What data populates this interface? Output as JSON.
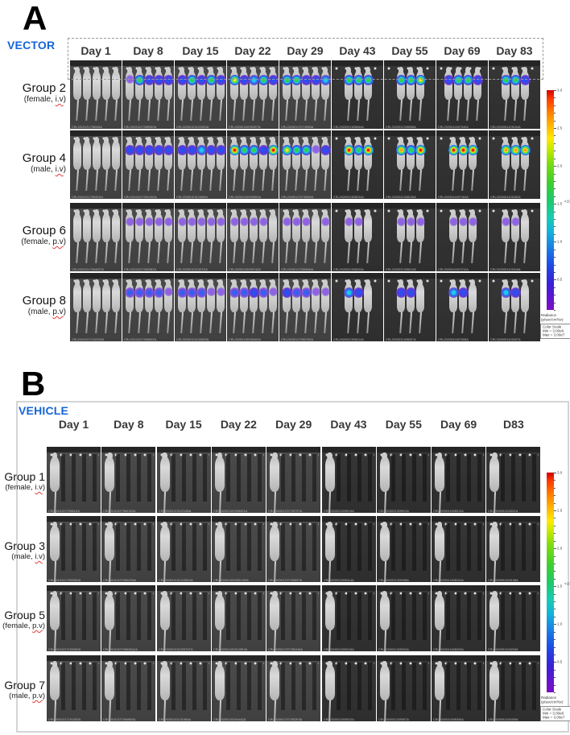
{
  "figure": {
    "panels": [
      {
        "panel_label": "A",
        "treatment": "VECTOR",
        "days": [
          "Day 1",
          "Day 8",
          "Day 15",
          "Day 22",
          "Day 29",
          "Day 43",
          "Day 55",
          "Day 69",
          "Day 83"
        ],
        "rows": [
          {
            "group": "Group 2",
            "sub_prefix": "(female, ",
            "route": "i.v",
            "sub_suffix": ")",
            "ids": [
              "CRL2019121708326A",
              "CRL2019122708505SA",
              "CRL2020010312240SA",
              "CRL2020011009030TA",
              "CRL2020011707490NA",
              "CRL2020021508064A",
              "CRL2020031308058A",
              "CRL2020041607040A",
              "CRL2020051105154A"
            ],
            "glow": [
              [
                "-",
                "-",
                "-",
                "-",
                "-"
              ],
              [
                "p",
                "g",
                "b",
                "b",
                "b"
              ],
              [
                "b",
                "g",
                "b",
                "g",
                "b"
              ],
              [
                "y",
                "b",
                "c",
                "g",
                "b"
              ],
              [
                "g",
                "g",
                "b",
                "b",
                "c"
              ],
              [
                "g",
                "g",
                "g"
              ],
              [
                "g",
                "g",
                "y"
              ],
              [
                "b",
                "g",
                "g",
                "b"
              ],
              [
                "g",
                "g",
                "b"
              ]
            ]
          },
          {
            "group": "Group 4",
            "sub_prefix": "(male, ",
            "route": "i.v",
            "sub_suffix": ")",
            "ids": [
              "CRL2019121709401IA",
              "CRL2019122709124GA",
              "CRL2020010312450IA",
              "CRL2020011009050SA",
              "CRL2020011707650NA",
              "CRL2020021508234A",
              "CRL2020031308128A",
              "CRL2020041607164A",
              "CRL2020051105262A"
            ],
            "glow": [
              [
                "-",
                "-",
                "-",
                "-",
                "-"
              ],
              [
                "b",
                "b",
                "b",
                "b",
                "b"
              ],
              [
                "b",
                "b",
                "c",
                "b",
                "b"
              ],
              [
                "r",
                "g",
                "g",
                "b",
                "r"
              ],
              [
                "y",
                "g",
                "g",
                "p",
                "b"
              ],
              [
                "r",
                "g",
                "r"
              ],
              [
                "o",
                "g",
                "r"
              ],
              [
                "r",
                "r",
                "r"
              ],
              [
                "o",
                "o",
                "o"
              ]
            ]
          },
          {
            "group": "Group 6",
            "sub_prefix": "(female, ",
            "route": "p.v",
            "sub_suffix": ")",
            "ids": [
              "CRL2019121709403TA",
              "CRL2019122709038ZA",
              "CRL2020010313072IA",
              "CRL2020011009074ZA",
              "CRL2020011708054NA",
              "CRL2020021508323A",
              "CRL2020031308213A",
              "CRL2020041607212A",
              "CRL2020051105318A"
            ],
            "glow": [
              [
                "-",
                "-",
                "-",
                "-",
                "-"
              ],
              [
                "p",
                "p",
                "p",
                "p",
                "p"
              ],
              [
                "p",
                "p",
                "p",
                "p",
                "p"
              ],
              [
                "p",
                "p",
                "p",
                "p",
                "-"
              ],
              [
                "p",
                "p",
                "p",
                "-",
                "p"
              ],
              [
                "p",
                "p",
                "-"
              ],
              [
                "p",
                "p",
                "p"
              ],
              [
                "p",
                "p",
                "p"
              ],
              [
                "p",
                "p",
                "-"
              ]
            ]
          },
          {
            "group": "Group 8",
            "sub_prefix": "(male, ",
            "route": "p.v",
            "sub_suffix": ")",
            "ids": [
              "CRL2019121710223SA",
              "CRL2019122709563ZA",
              "CRL2020010313309SA",
              "CRL2020011009540ZA",
              "CRL2020011708076SA",
              "CRL2020021508414A",
              "CRL2020031308307A",
              "CRL2020041607308A",
              "CRL2020051105407A"
            ],
            "glow": [
              [
                "-",
                "-",
                "-",
                "-",
                "-"
              ],
              [
                "P",
                "P",
                "P",
                "P",
                "p"
              ],
              [
                "P",
                "P",
                "P",
                "p",
                "p"
              ],
              [
                "P",
                "P",
                "b",
                "P",
                "p"
              ],
              [
                "b",
                "P",
                "P",
                "p",
                "p"
              ],
              [
                "c",
                "b",
                "-"
              ],
              [
                "b",
                "b",
                "-"
              ],
              [
                "c",
                "b",
                "-"
              ],
              [
                "c",
                "b",
                "-"
              ]
            ]
          }
        ]
      },
      {
        "panel_label": "B",
        "treatment": "VEHICLE",
        "days": [
          "Day 1",
          "Day 8",
          "Day 15",
          "Day 22",
          "Day 29",
          "Day 43",
          "Day 55",
          "Day 69",
          "D83"
        ],
        "rows": [
          {
            "group": "Group 1",
            "sub_prefix": "(female, ",
            "route": "i.v",
            "sub_suffix": ")",
            "ids": [
              "CRL2019121709541IA",
              "CRL2019122708413SA",
              "CRL2020010312214BA",
              "CRL2020011009083S1A",
              "CRL2020011707307S7A",
              "CRL2020021509013A",
              "CRL2020031309021A",
              "CRL2020041608012A",
              "CRL2020051106011A"
            ]
          },
          {
            "group": "Group 3",
            "sub_prefix": "(male, ",
            "route": "i.v",
            "sub_suffix": ")",
            "ids": [
              "CRL2019121709035SA",
              "CRL2019122709047MA",
              "CRL2020010312135D4A",
              "CRL2020011009091J09A",
              "CRL2020011707506S7A",
              "CRL2020021509114A",
              "CRL2020031309108A",
              "CRL2020041608104A",
              "CRL2020051106108A"
            ]
          },
          {
            "group": "Group 5",
            "sub_prefix": "(female, ",
            "route": "p.v",
            "sub_suffix": ")",
            "ids": [
              "CRL2019121710026SA",
              "CRL2019122709625Q4A",
              "CRL2020010313257S7A",
              "CRL2020011009129E2A",
              "CRL2020011707081I46A",
              "CRL2020021509216A",
              "CRL2020031309204A",
              "CRL2020041608209A",
              "CRL2020051106203A"
            ]
          },
          {
            "group": "Group 7",
            "sub_prefix": "(male, ",
            "route": "p.v",
            "sub_suffix": ")",
            "ids": [
              "CRL2019121710125ZA",
              "CRL2019122709465SA",
              "CRL2020010113195AA",
              "CRL2020011009444QA",
              "CRL2020011707802E3A",
              "CRL2020021509312A",
              "CRL2020031309307A",
              "CRL2020041608306A",
              "CRL2020051106305A"
            ]
          }
        ]
      }
    ],
    "colorbar": {
      "ticks": [
        "3.0",
        "2.5",
        "2.0",
        "1.5",
        "1.0",
        "0.5"
      ],
      "exponent": "×10⁷",
      "unit_lines": [
        "Radiance",
        "(p/sec/cm²/sr)"
      ],
      "scale_box": [
        "Color Scale",
        "Min = 3.00e6",
        "Max = 3.00e7"
      ],
      "top_color": "#cf0000",
      "bottom_color": "#7c0fc0"
    },
    "accent_blue": "#1565d8"
  }
}
